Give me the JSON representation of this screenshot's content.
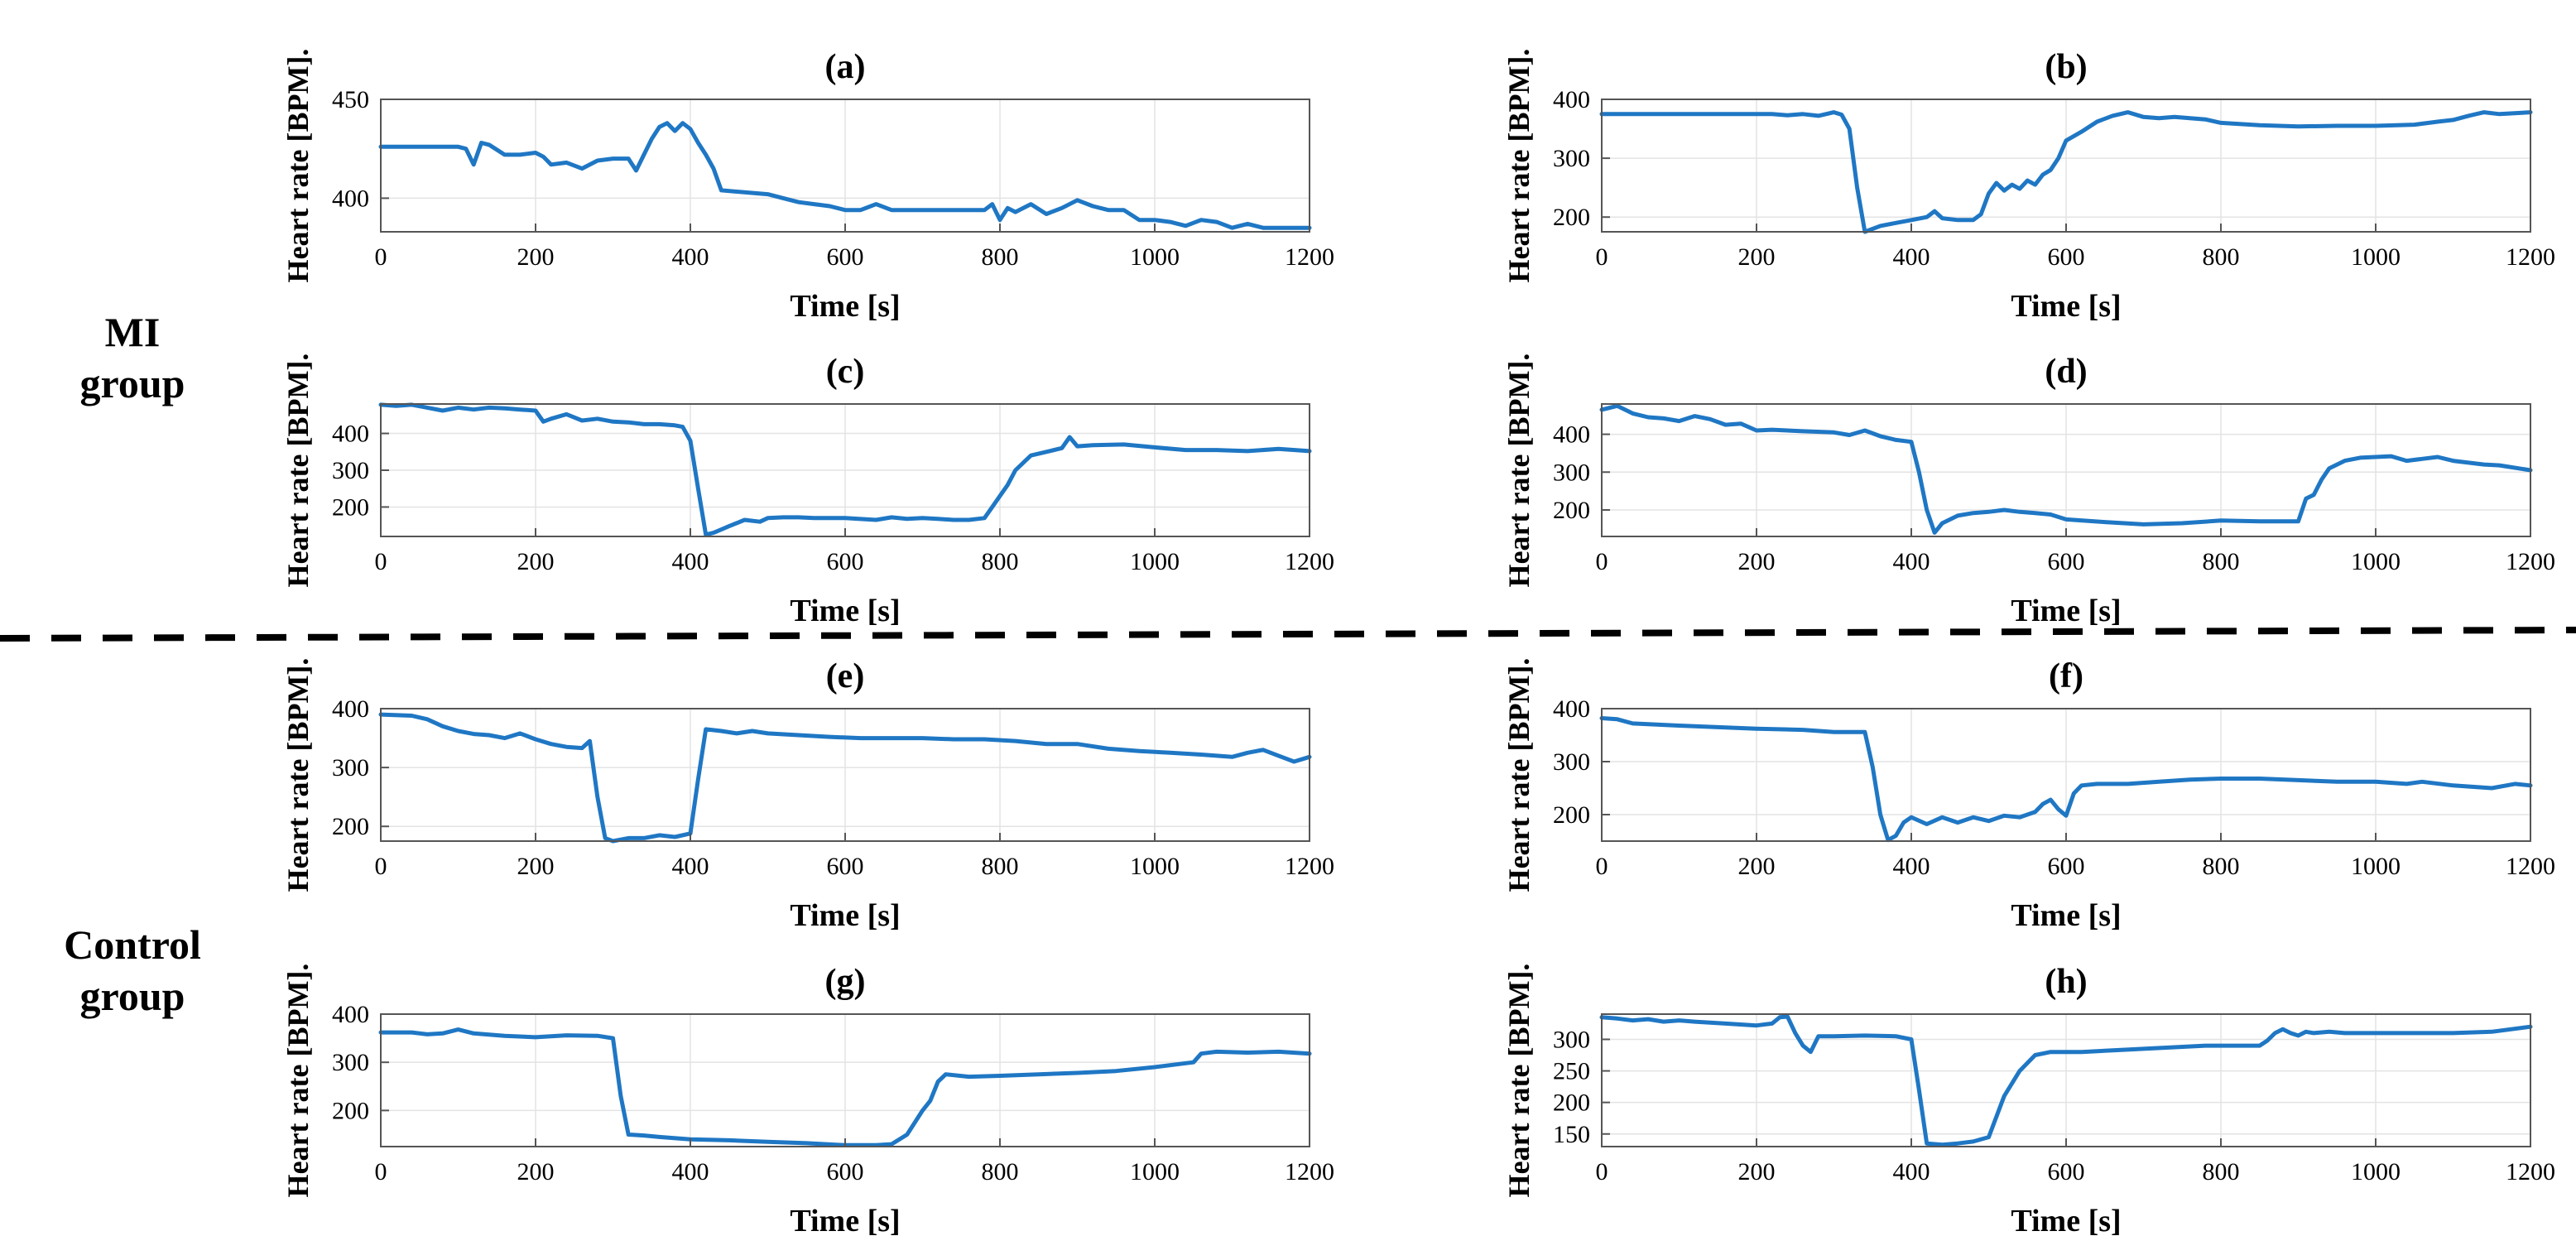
{
  "group_labels": {
    "mi_line1": "MI",
    "mi_line2": "group",
    "control_line1": "Control",
    "control_line2": "group"
  },
  "colors": {
    "line": "#1f77c4",
    "axis": "#555555",
    "grid": "#e3e3e3"
  },
  "chart_data": [
    {
      "type": "line",
      "title": "(a)",
      "xlabel": "Time [s]",
      "ylabel": "Heart rate [BPM].",
      "xlim": [
        0,
        1200
      ],
      "ylim": [
        383,
        450
      ],
      "xticks": [
        0,
        200,
        400,
        600,
        800,
        1000,
        1200
      ],
      "yticks": [
        400,
        450
      ],
      "grid": true,
      "series": [
        {
          "name": "Heart rate",
          "x": [
            0,
            100,
            110,
            120,
            130,
            140,
            160,
            180,
            200,
            210,
            220,
            240,
            260,
            280,
            300,
            320,
            330,
            340,
            350,
            360,
            370,
            380,
            390,
            400,
            410,
            420,
            430,
            440,
            500,
            520,
            540,
            560,
            580,
            600,
            620,
            640,
            660,
            680,
            700,
            720,
            740,
            760,
            780,
            790,
            800,
            810,
            820,
            840,
            860,
            880,
            900,
            920,
            940,
            960,
            980,
            1000,
            1020,
            1040,
            1060,
            1080,
            1100,
            1120,
            1140,
            1200
          ],
          "y": [
            426,
            426,
            425,
            417,
            428,
            427,
            422,
            422,
            423,
            421,
            417,
            418,
            415,
            419,
            420,
            420,
            414,
            422,
            430,
            436,
            438,
            434,
            438,
            435,
            428,
            422,
            415,
            404,
            402,
            400,
            398,
            397,
            396,
            394,
            394,
            397,
            394,
            394,
            394,
            394,
            394,
            394,
            394,
            397,
            389,
            395,
            393,
            397,
            392,
            395,
            399,
            396,
            394,
            394,
            389,
            389,
            388,
            386,
            389,
            388,
            385,
            387,
            385,
            385
          ]
        }
      ]
    },
    {
      "type": "line",
      "title": "(b)",
      "xlabel": "Time [s]",
      "ylabel": "Heart rate [BPM].",
      "xlim": [
        0,
        1200
      ],
      "ylim": [
        175,
        400
      ],
      "xticks": [
        0,
        200,
        400,
        600,
        800,
        1000,
        1200
      ],
      "yticks": [
        200,
        300,
        400
      ],
      "grid": true,
      "series": [
        {
          "name": "Heart rate",
          "x": [
            0,
            200,
            220,
            240,
            260,
            280,
            300,
            310,
            320,
            330,
            340,
            360,
            380,
            400,
            420,
            430,
            440,
            460,
            480,
            490,
            500,
            510,
            520,
            530,
            540,
            550,
            560,
            570,
            580,
            590,
            600,
            620,
            640,
            660,
            680,
            700,
            720,
            740,
            760,
            780,
            800,
            850,
            900,
            950,
            1000,
            1050,
            1080,
            1100,
            1120,
            1140,
            1160,
            1200
          ],
          "y": [
            375,
            375,
            375,
            373,
            375,
            372,
            378,
            374,
            350,
            250,
            175,
            185,
            190,
            195,
            200,
            210,
            198,
            195,
            195,
            205,
            240,
            258,
            245,
            255,
            248,
            262,
            255,
            272,
            280,
            300,
            330,
            345,
            362,
            372,
            378,
            370,
            368,
            370,
            368,
            366,
            360,
            356,
            354,
            355,
            355,
            357,
            362,
            365,
            372,
            378,
            375,
            378
          ]
        }
      ]
    },
    {
      "type": "line",
      "title": "(c)",
      "xlabel": "Time [s]",
      "ylabel": "Heart rate [BPM].",
      "xlim": [
        0,
        1200
      ],
      "ylim": [
        120,
        480
      ],
      "xticks": [
        0,
        200,
        400,
        600,
        800,
        1000,
        1200
      ],
      "yticks": [
        200,
        300,
        400
      ],
      "grid": true,
      "series": [
        {
          "name": "Heart rate",
          "x": [
            0,
            20,
            40,
            60,
            80,
            100,
            120,
            140,
            160,
            180,
            200,
            210,
            220,
            240,
            260,
            280,
            300,
            320,
            340,
            360,
            380,
            390,
            400,
            410,
            420,
            430,
            450,
            470,
            490,
            500,
            520,
            540,
            560,
            600,
            640,
            660,
            680,
            700,
            720,
            740,
            760,
            780,
            790,
            800,
            810,
            820,
            840,
            860,
            880,
            890,
            900,
            920,
            960,
            1000,
            1040,
            1080,
            1120,
            1160,
            1200
          ],
          "y": [
            478,
            475,
            478,
            470,
            462,
            470,
            465,
            470,
            468,
            465,
            462,
            432,
            440,
            452,
            435,
            440,
            432,
            430,
            425,
            425,
            422,
            418,
            380,
            250,
            125,
            130,
            148,
            165,
            160,
            170,
            172,
            172,
            170,
            170,
            165,
            172,
            168,
            170,
            168,
            165,
            165,
            170,
            200,
            230,
            260,
            300,
            340,
            350,
            360,
            390,
            365,
            368,
            370,
            362,
            355,
            355,
            352,
            358,
            352
          ]
        }
      ]
    },
    {
      "type": "line",
      "title": "(d)",
      "xlabel": "Time [s]",
      "ylabel": "Heart rate [BPM].",
      "xlim": [
        0,
        1200
      ],
      "ylim": [
        130,
        480
      ],
      "xticks": [
        0,
        200,
        400,
        600,
        800,
        1000,
        1200
      ],
      "yticks": [
        200,
        300,
        400
      ],
      "grid": true,
      "series": [
        {
          "name": "Heart rate",
          "x": [
            0,
            20,
            40,
            60,
            80,
            100,
            120,
            140,
            160,
            180,
            200,
            220,
            260,
            300,
            320,
            340,
            360,
            380,
            400,
            410,
            420,
            430,
            440,
            460,
            480,
            500,
            520,
            540,
            560,
            580,
            600,
            650,
            700,
            750,
            800,
            850,
            900,
            910,
            920,
            930,
            940,
            960,
            980,
            1000,
            1020,
            1040,
            1060,
            1080,
            1100,
            1120,
            1140,
            1160,
            1200
          ],
          "y": [
            465,
            475,
            455,
            445,
            442,
            435,
            448,
            440,
            425,
            428,
            410,
            412,
            408,
            405,
            398,
            410,
            395,
            385,
            380,
            300,
            200,
            140,
            165,
            185,
            192,
            195,
            200,
            195,
            192,
            188,
            175,
            168,
            162,
            165,
            172,
            170,
            170,
            230,
            240,
            280,
            310,
            330,
            338,
            340,
            342,
            330,
            335,
            340,
            330,
            325,
            320,
            318,
            305
          ]
        }
      ]
    },
    {
      "type": "line",
      "title": "(e)",
      "xlabel": "Time [s]",
      "ylabel": "Heart rate [BPM].",
      "xlim": [
        0,
        1200
      ],
      "ylim": [
        175,
        400
      ],
      "xticks": [
        0,
        200,
        400,
        600,
        800,
        1000,
        1200
      ],
      "yticks": [
        200,
        300,
        400
      ],
      "grid": true,
      "series": [
        {
          "name": "Heart rate",
          "x": [
            0,
            40,
            60,
            80,
            100,
            120,
            140,
            160,
            180,
            200,
            220,
            240,
            260,
            270,
            280,
            290,
            300,
            320,
            340,
            360,
            380,
            400,
            410,
            420,
            440,
            460,
            480,
            500,
            540,
            580,
            620,
            660,
            700,
            740,
            780,
            820,
            860,
            900,
            940,
            980,
            1020,
            1060,
            1100,
            1120,
            1140,
            1160,
            1180,
            1200
          ],
          "y": [
            390,
            388,
            382,
            370,
            362,
            357,
            355,
            350,
            358,
            348,
            340,
            335,
            333,
            345,
            250,
            180,
            175,
            180,
            180,
            185,
            182,
            188,
            280,
            365,
            362,
            358,
            362,
            358,
            355,
            352,
            350,
            350,
            350,
            348,
            348,
            345,
            340,
            340,
            332,
            328,
            325,
            322,
            318,
            325,
            330,
            320,
            310,
            318
          ]
        }
      ]
    },
    {
      "type": "line",
      "title": "(f)",
      "xlabel": "Time [s]",
      "ylabel": "Heart rate [BPM].",
      "xlim": [
        0,
        1200
      ],
      "ylim": [
        150,
        400
      ],
      "xticks": [
        0,
        200,
        400,
        600,
        800,
        1000,
        1200
      ],
      "yticks": [
        200,
        300,
        400
      ],
      "grid": true,
      "series": [
        {
          "name": "Heart rate",
          "x": [
            0,
            20,
            40,
            100,
            200,
            260,
            300,
            340,
            350,
            360,
            370,
            380,
            390,
            400,
            420,
            440,
            460,
            480,
            500,
            520,
            540,
            560,
            570,
            580,
            590,
            600,
            610,
            620,
            640,
            680,
            720,
            760,
            800,
            850,
            900,
            950,
            1000,
            1040,
            1060,
            1100,
            1150,
            1180,
            1200
          ],
          "y": [
            382,
            380,
            372,
            368,
            362,
            360,
            356,
            356,
            290,
            200,
            152,
            160,
            185,
            195,
            182,
            195,
            185,
            195,
            188,
            198,
            195,
            205,
            220,
            228,
            210,
            198,
            240,
            255,
            258,
            258,
            262,
            266,
            268,
            268,
            265,
            262,
            262,
            258,
            262,
            255,
            250,
            258,
            255
          ]
        }
      ]
    },
    {
      "type": "line",
      "title": "(g)",
      "xlabel": "Time [s]",
      "ylabel": "Heart rate [BPM].",
      "xlim": [
        0,
        1200
      ],
      "ylim": [
        125,
        400
      ],
      "xticks": [
        0,
        200,
        400,
        600,
        800,
        1000,
        1200
      ],
      "yticks": [
        200,
        300,
        400
      ],
      "grid": true,
      "series": [
        {
          "name": "Heart rate",
          "x": [
            0,
            40,
            60,
            80,
            100,
            120,
            160,
            200,
            240,
            280,
            300,
            310,
            320,
            340,
            360,
            400,
            450,
            500,
            550,
            600,
            640,
            660,
            680,
            690,
            700,
            710,
            720,
            730,
            760,
            800,
            850,
            900,
            950,
            1000,
            1040,
            1050,
            1060,
            1080,
            1120,
            1160,
            1200
          ],
          "y": [
            362,
            362,
            358,
            360,
            368,
            360,
            355,
            352,
            356,
            355,
            350,
            230,
            150,
            148,
            145,
            140,
            138,
            135,
            132,
            128,
            128,
            130,
            150,
            175,
            200,
            220,
            260,
            275,
            270,
            272,
            275,
            278,
            282,
            290,
            298,
            300,
            318,
            322,
            320,
            322,
            318
          ]
        }
      ]
    },
    {
      "type": "line",
      "title": "(h)",
      "xlabel": "Time [s]",
      "ylabel": "Heart rate [BPM].",
      "xlim": [
        0,
        1200
      ],
      "ylim": [
        130,
        340
      ],
      "xticks": [
        0,
        200,
        400,
        600,
        800,
        1000,
        1200
      ],
      "yticks": [
        150,
        200,
        250,
        300
      ],
      "grid": true,
      "series": [
        {
          "name": "Heart rate",
          "x": [
            0,
            20,
            40,
            60,
            80,
            100,
            120,
            160,
            200,
            220,
            230,
            240,
            250,
            260,
            270,
            280,
            300,
            340,
            380,
            400,
            410,
            420,
            440,
            460,
            480,
            500,
            520,
            540,
            560,
            580,
            620,
            700,
            780,
            850,
            860,
            870,
            880,
            890,
            900,
            910,
            920,
            940,
            960,
            1000,
            1050,
            1100,
            1150,
            1200
          ],
          "y": [
            335,
            333,
            330,
            332,
            328,
            330,
            328,
            325,
            322,
            325,
            335,
            336,
            310,
            290,
            280,
            305,
            305,
            306,
            305,
            300,
            220,
            135,
            133,
            135,
            138,
            145,
            210,
            250,
            275,
            280,
            280,
            285,
            290,
            290,
            298,
            310,
            316,
            310,
            306,
            312,
            310,
            312,
            310,
            310,
            310,
            310,
            312,
            320
          ]
        }
      ]
    }
  ]
}
